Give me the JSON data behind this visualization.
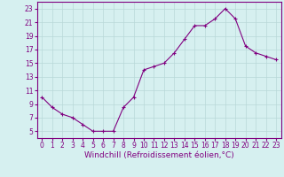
{
  "x": [
    0,
    1,
    2,
    3,
    4,
    5,
    6,
    7,
    8,
    9,
    10,
    11,
    12,
    13,
    14,
    15,
    16,
    17,
    18,
    19,
    20,
    21,
    22,
    23
  ],
  "y": [
    10.0,
    8.5,
    7.5,
    7.0,
    6.0,
    5.0,
    5.0,
    5.0,
    8.5,
    10.0,
    14.0,
    14.5,
    15.0,
    16.5,
    18.5,
    20.5,
    20.5,
    21.5,
    23.0,
    21.5,
    17.5,
    16.5,
    16.0,
    15.5
  ],
  "line_color": "#800080",
  "marker": "+",
  "background_color": "#d6f0f0",
  "grid_color": "#b8d8d8",
  "xlabel": "Windchill (Refroidissement éolien,°C)",
  "xlim": [
    -0.5,
    23.5
  ],
  "ylim": [
    4,
    24
  ],
  "yticks": [
    5,
    7,
    9,
    11,
    13,
    15,
    17,
    19,
    21,
    23
  ],
  "xtick_labels": [
    "0",
    "1",
    "2",
    "3",
    "4",
    "5",
    "6",
    "7",
    "8",
    "9",
    "10",
    "11",
    "12",
    "13",
    "14",
    "15",
    "16",
    "17",
    "18",
    "19",
    "20",
    "21",
    "22",
    "23"
  ],
  "tick_color": "#800080",
  "label_fontsize": 5.5,
  "xlabel_fontsize": 6.5
}
